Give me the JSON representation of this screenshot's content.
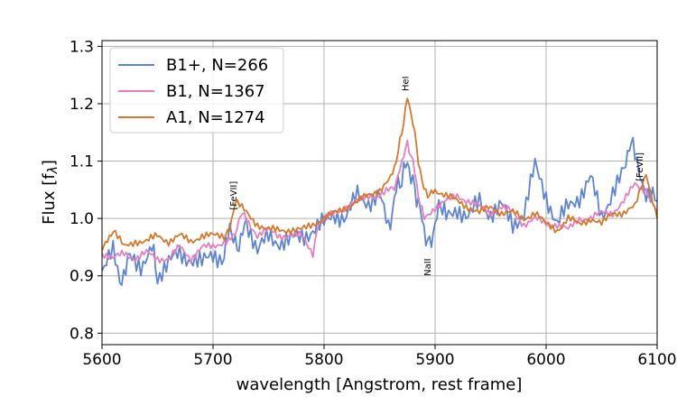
{
  "chart_data": {
    "type": "line",
    "xlabel": "wavelength [Angstrom, rest frame]",
    "ylabel": "Flux [f",
    "ylabel_sub": "λ",
    "ylabel_end": "]",
    "xlim": [
      5600,
      6100
    ],
    "ylim": [
      0.78,
      1.31
    ],
    "xticks": [
      "5600",
      "5700",
      "5800",
      "5900",
      "6000",
      "6100"
    ],
    "yticks": [
      "0.8",
      "0.9",
      "1.0",
      "1.1",
      "1.2",
      "1.3"
    ],
    "grid": true,
    "legend_position": "top-left",
    "series": [
      {
        "name": "B1+, N=266",
        "color": "#5b84d3",
        "points": [
          [
            5600,
            0.91
          ],
          [
            5610,
            0.94
          ],
          [
            5616,
            0.89
          ],
          [
            5625,
            0.93
          ],
          [
            5635,
            0.92
          ],
          [
            5645,
            0.95
          ],
          [
            5650,
            0.9
          ],
          [
            5660,
            0.92
          ],
          [
            5670,
            0.94
          ],
          [
            5680,
            0.93
          ],
          [
            5690,
            0.92
          ],
          [
            5700,
            0.94
          ],
          [
            5710,
            0.93
          ],
          [
            5715,
            0.99
          ],
          [
            5720,
            0.95
          ],
          [
            5725,
            0.96
          ],
          [
            5730,
            1.0
          ],
          [
            5740,
            0.94
          ],
          [
            5750,
            0.97
          ],
          [
            5760,
            0.96
          ],
          [
            5770,
            0.96
          ],
          [
            5780,
            0.97
          ],
          [
            5790,
            0.98
          ],
          [
            5800,
            0.99
          ],
          [
            5810,
            1.01
          ],
          [
            5820,
            1.0
          ],
          [
            5830,
            1.04
          ],
          [
            5840,
            1.03
          ],
          [
            5850,
            1.04
          ],
          [
            5858,
            0.98
          ],
          [
            5865,
            1.05
          ],
          [
            5870,
            1.07
          ],
          [
            5875,
            1.1
          ],
          [
            5880,
            1.06
          ],
          [
            5885,
            1.03
          ],
          [
            5890,
            0.98
          ],
          [
            5895,
            0.95
          ],
          [
            5900,
            0.99
          ],
          [
            5905,
            1.03
          ],
          [
            5910,
            1.0
          ],
          [
            5920,
            1.02
          ],
          [
            5930,
            1.0
          ],
          [
            5940,
            1.03
          ],
          [
            5950,
            1.01
          ],
          [
            5960,
            1.02
          ],
          [
            5970,
            0.99
          ],
          [
            5980,
            1.01
          ],
          [
            5990,
            1.09
          ],
          [
            6000,
            1.04
          ],
          [
            6010,
            0.99
          ],
          [
            6020,
            1.02
          ],
          [
            6030,
            1.04
          ],
          [
            6040,
            1.07
          ],
          [
            6050,
            1.0
          ],
          [
            6060,
            1.05
          ],
          [
            6070,
            1.08
          ],
          [
            6075,
            1.13
          ],
          [
            6080,
            1.12
          ],
          [
            6090,
            1.04
          ],
          [
            6100,
            1.03
          ]
        ]
      },
      {
        "name": "B1, N=1367",
        "color": "#e67fbf",
        "points": [
          [
            5600,
            0.94
          ],
          [
            5610,
            0.93
          ],
          [
            5620,
            0.94
          ],
          [
            5630,
            0.93
          ],
          [
            5640,
            0.94
          ],
          [
            5650,
            0.93
          ],
          [
            5660,
            0.93
          ],
          [
            5670,
            0.95
          ],
          [
            5680,
            0.93
          ],
          [
            5690,
            0.95
          ],
          [
            5700,
            0.95
          ],
          [
            5710,
            0.96
          ],
          [
            5720,
            0.97
          ],
          [
            5725,
            1.01
          ],
          [
            5730,
            1.0
          ],
          [
            5740,
            0.97
          ],
          [
            5750,
            0.98
          ],
          [
            5760,
            0.97
          ],
          [
            5770,
            0.97
          ],
          [
            5780,
            0.97
          ],
          [
            5790,
            0.94
          ],
          [
            5795,
            0.99
          ],
          [
            5800,
            1.0
          ],
          [
            5810,
            1.01
          ],
          [
            5820,
            1.02
          ],
          [
            5830,
            1.03
          ],
          [
            5840,
            1.04
          ],
          [
            5850,
            1.04
          ],
          [
            5860,
            1.05
          ],
          [
            5865,
            1.06
          ],
          [
            5870,
            1.1
          ],
          [
            5875,
            1.13
          ],
          [
            5880,
            1.1
          ],
          [
            5885,
            1.04
          ],
          [
            5890,
            1.0
          ],
          [
            5900,
            1.02
          ],
          [
            5910,
            1.03
          ],
          [
            5920,
            1.04
          ],
          [
            5930,
            1.03
          ],
          [
            5940,
            1.02
          ],
          [
            5950,
            1.01
          ],
          [
            5960,
            1.02
          ],
          [
            5970,
            1.01
          ],
          [
            5980,
            0.99
          ],
          [
            5990,
            1.0
          ],
          [
            6000,
            0.99
          ],
          [
            6010,
            0.99
          ],
          [
            6020,
            0.98
          ],
          [
            6030,
            1.0
          ],
          [
            6040,
            1.0
          ],
          [
            6050,
            1.01
          ],
          [
            6060,
            1.01
          ],
          [
            6070,
            1.03
          ],
          [
            6080,
            1.06
          ],
          [
            6090,
            1.05
          ],
          [
            6100,
            1.01
          ]
        ]
      },
      {
        "name": "A1, N=1274",
        "color": "#d6782a",
        "points": [
          [
            5600,
            0.95
          ],
          [
            5605,
            0.96
          ],
          [
            5610,
            0.98
          ],
          [
            5620,
            0.95
          ],
          [
            5630,
            0.96
          ],
          [
            5640,
            0.96
          ],
          [
            5650,
            0.97
          ],
          [
            5660,
            0.96
          ],
          [
            5670,
            0.97
          ],
          [
            5680,
            0.96
          ],
          [
            5690,
            0.97
          ],
          [
            5700,
            0.97
          ],
          [
            5710,
            0.97
          ],
          [
            5715,
            0.98
          ],
          [
            5720,
            1.03
          ],
          [
            5730,
            1.01
          ],
          [
            5740,
            0.99
          ],
          [
            5750,
            0.98
          ],
          [
            5760,
            0.98
          ],
          [
            5770,
            0.98
          ],
          [
            5780,
            0.98
          ],
          [
            5790,
            0.99
          ],
          [
            5800,
            1.0
          ],
          [
            5810,
            1.01
          ],
          [
            5820,
            1.02
          ],
          [
            5830,
            1.03
          ],
          [
            5840,
            1.04
          ],
          [
            5850,
            1.05
          ],
          [
            5860,
            1.07
          ],
          [
            5865,
            1.1
          ],
          [
            5870,
            1.15
          ],
          [
            5875,
            1.21
          ],
          [
            5880,
            1.17
          ],
          [
            5885,
            1.1
          ],
          [
            5890,
            1.05
          ],
          [
            5895,
            1.04
          ],
          [
            5900,
            1.05
          ],
          [
            5910,
            1.04
          ],
          [
            5920,
            1.03
          ],
          [
            5930,
            1.02
          ],
          [
            5940,
            1.01
          ],
          [
            5950,
            1.02
          ],
          [
            5960,
            1.01
          ],
          [
            5970,
            1.01
          ],
          [
            5980,
            1.0
          ],
          [
            5990,
            1.01
          ],
          [
            6000,
            0.99
          ],
          [
            6010,
            0.98
          ],
          [
            6020,
            1.0
          ],
          [
            6030,
            0.99
          ],
          [
            6040,
            1.0
          ],
          [
            6050,
            0.99
          ],
          [
            6060,
            1.01
          ],
          [
            6070,
            1.01
          ],
          [
            6080,
            1.02
          ],
          [
            6090,
            1.08
          ],
          [
            6100,
            1.0
          ]
        ]
      }
    ],
    "annotations": [
      {
        "text": "[FeVII]",
        "x": 5721,
        "y": 1.04,
        "rotate": -90
      },
      {
        "text": "HeI",
        "x": 5876,
        "y": 1.235,
        "rotate": -90
      },
      {
        "text": "NaII",
        "x": 5896,
        "y": 0.915,
        "rotate": -90
      },
      {
        "text": "[FeVII]",
        "x": 6087,
        "y": 1.09,
        "rotate": -90
      }
    ]
  }
}
